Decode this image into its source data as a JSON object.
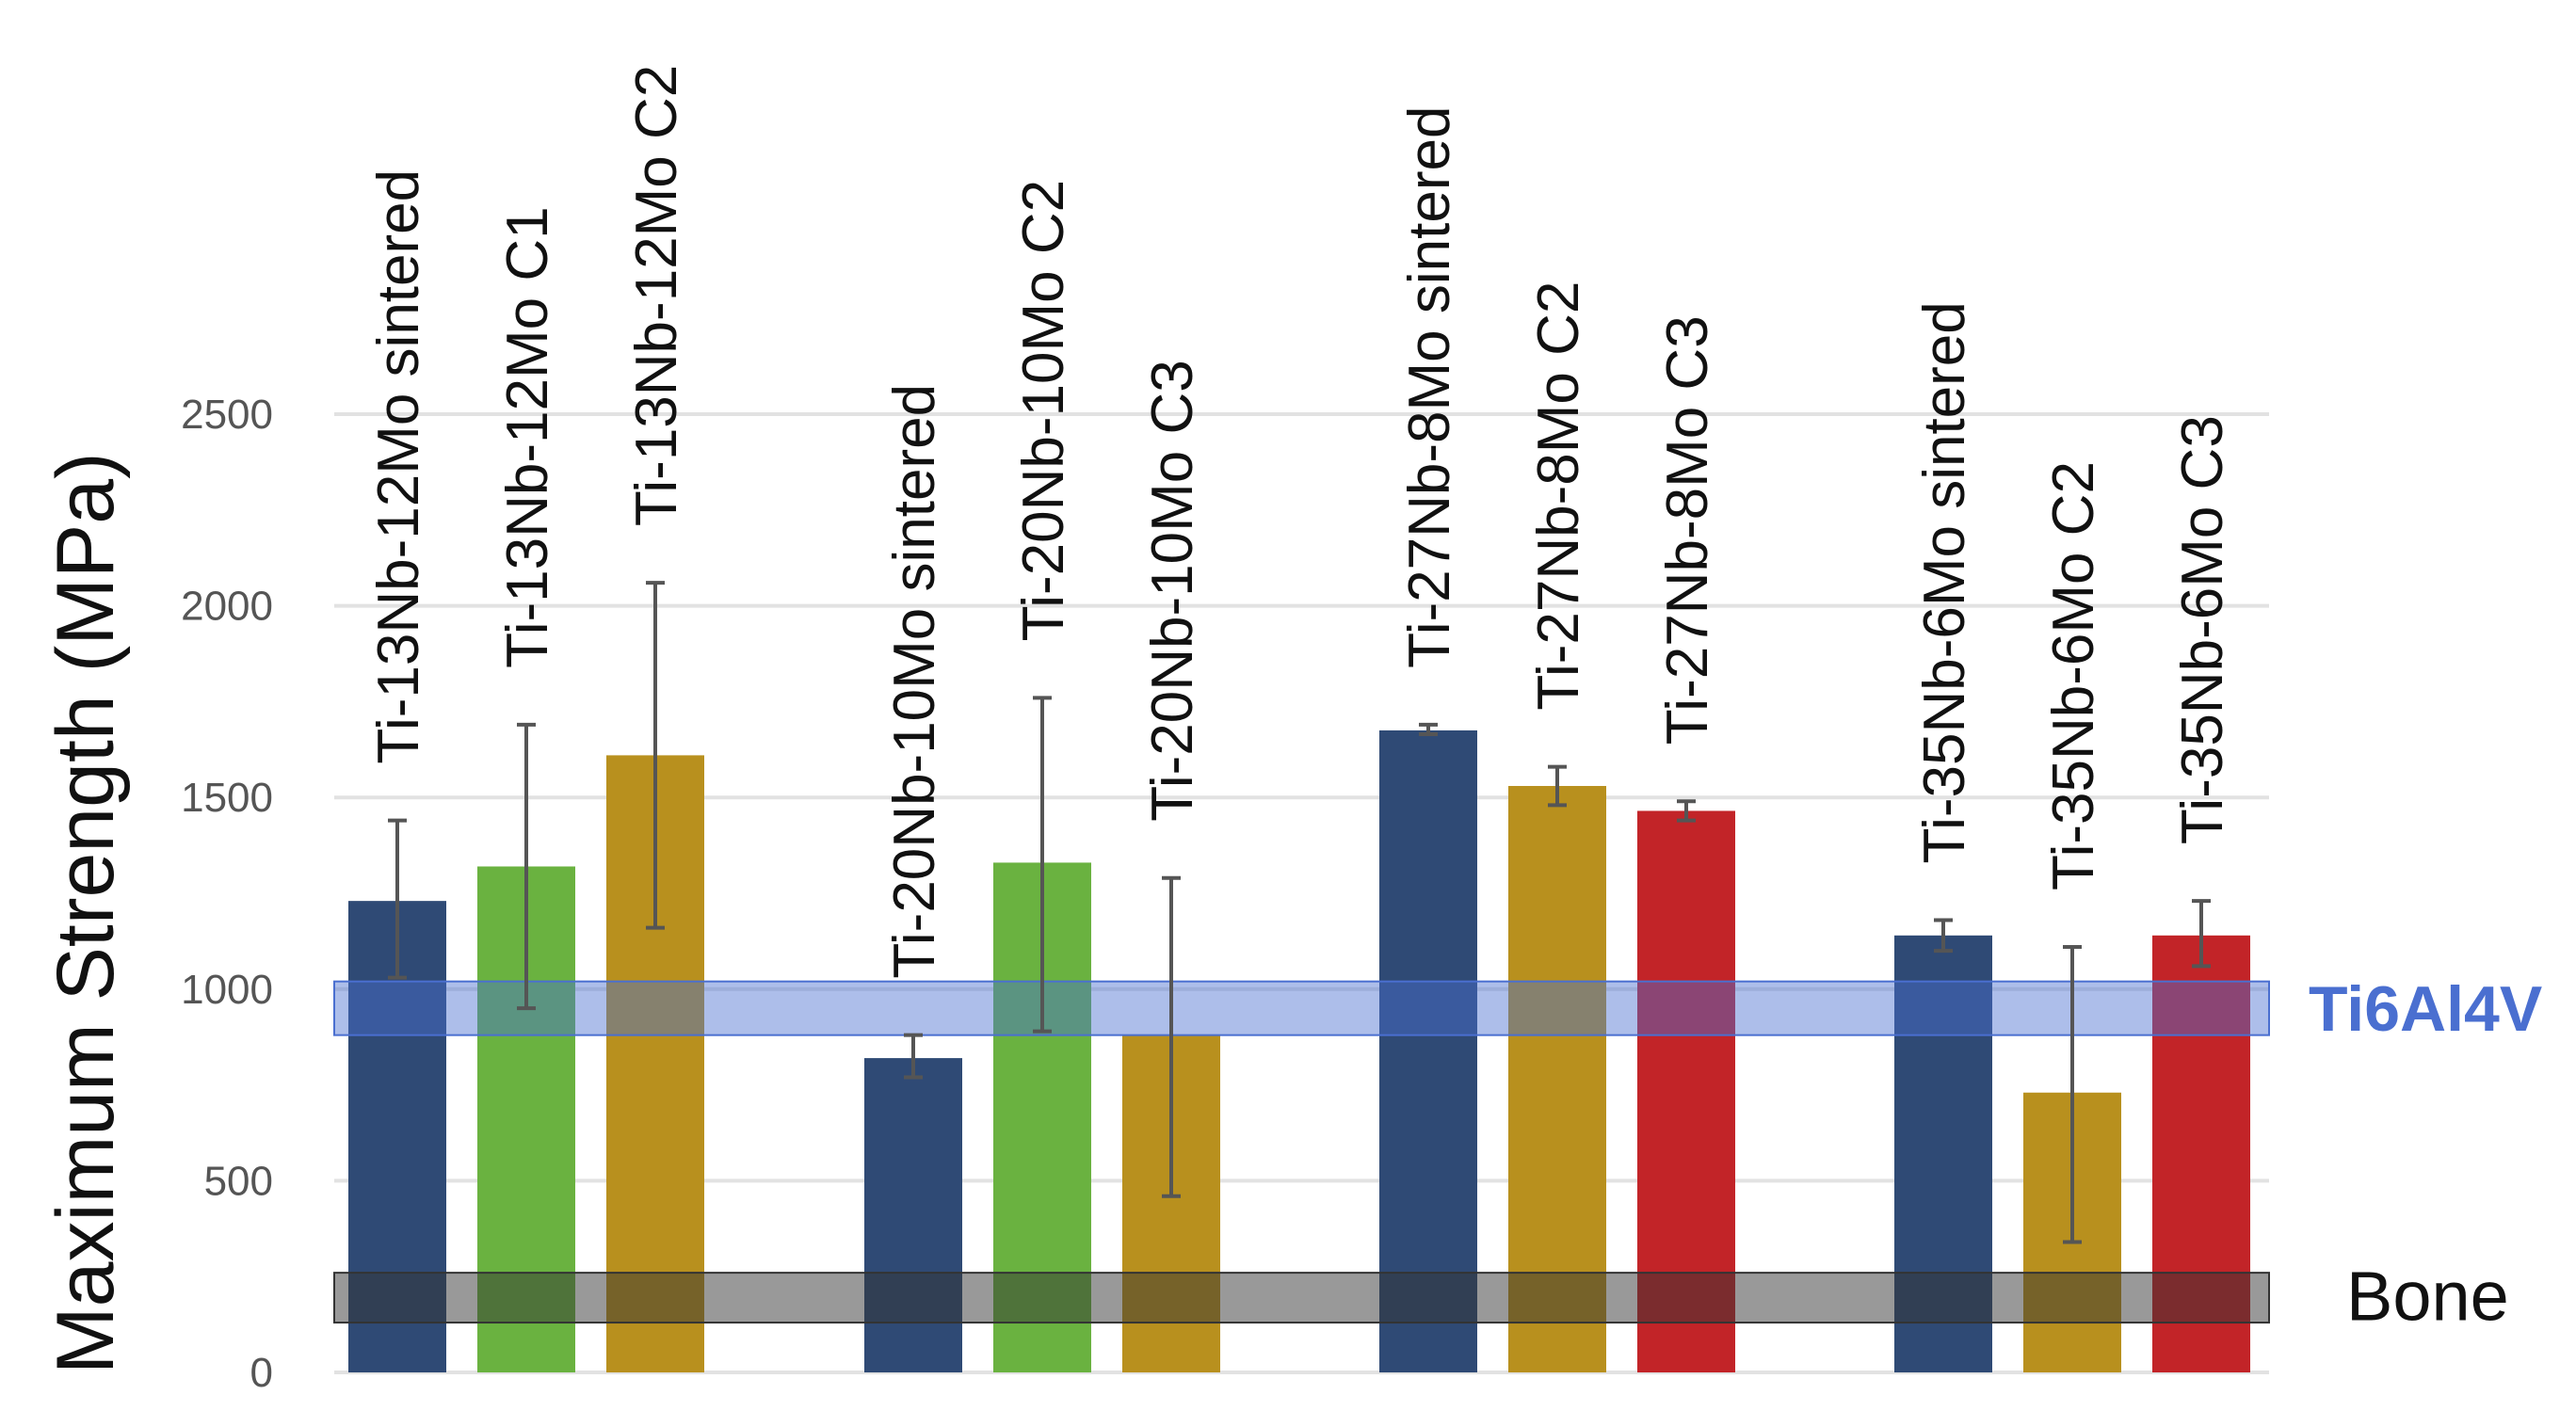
{
  "chart_data": {
    "type": "bar",
    "ylabel": "Maximum Strength (MPa)",
    "ylim": [
      0,
      2500
    ],
    "yticks": [
      "0",
      "500",
      "1000",
      "1500",
      "2000",
      "2500"
    ],
    "grid": true,
    "bars": [
      {
        "label": "Ti-13Nb-12Mo sintered",
        "value": 1230,
        "err_low": 1030,
        "err_high": 1440,
        "color": "#2f4a75"
      },
      {
        "label": "Ti-13Nb-12Mo C1",
        "value": 1320,
        "err_low": 950,
        "err_high": 1690,
        "color": "#6ab240"
      },
      {
        "label": "Ti-13Nb-12Mo C2",
        "value": 1610,
        "err_low": 1160,
        "err_high": 2060,
        "color": "#b8901e"
      },
      {
        "label": "Ti-20Nb-10Mo sintered",
        "value": 820,
        "err_low": 770,
        "err_high": 880,
        "color": "#2f4a75"
      },
      {
        "label": "Ti-20Nb-10Mo C2",
        "value": 1330,
        "err_low": 890,
        "err_high": 1760,
        "color": "#6ab240"
      },
      {
        "label": "Ti-20Nb-10Mo C3",
        "value": 880,
        "err_low": 460,
        "err_high": 1290,
        "color": "#b8901e"
      },
      {
        "label": "Ti-27Nb-8Mo sintered",
        "value": 1675,
        "err_low": 1665,
        "err_high": 1690,
        "color": "#2f4a75"
      },
      {
        "label": "Ti-27Nb-8Mo C2",
        "value": 1530,
        "err_low": 1480,
        "err_high": 1580,
        "color": "#b8901e"
      },
      {
        "label": "Ti-27Nb-8Mo C3",
        "value": 1465,
        "err_low": 1440,
        "err_high": 1490,
        "color": "#c22428"
      },
      {
        "label": "Ti-35Nb-6Mo sintered",
        "value": 1140,
        "err_low": 1100,
        "err_high": 1180,
        "color": "#2f4a75"
      },
      {
        "label": "Ti-35Nb-6Mo C2",
        "value": 730,
        "err_low": 340,
        "err_high": 1110,
        "color": "#b8901e"
      },
      {
        "label": "Ti-35Nb-6Mo C3",
        "value": 1140,
        "err_low": 1060,
        "err_high": 1230,
        "color": "#c22428"
      }
    ],
    "bar_groups": [
      [
        0,
        1,
        2
      ],
      [
        3,
        4,
        5
      ],
      [
        6,
        7,
        8
      ],
      [
        9,
        10,
        11
      ]
    ],
    "bands": [
      {
        "label": "Ti6Al4V",
        "low": 880,
        "high": 1020,
        "color": "#4a6fd0"
      },
      {
        "label": "Bone",
        "low": 130,
        "high": 260,
        "color": "#333333"
      }
    ]
  }
}
